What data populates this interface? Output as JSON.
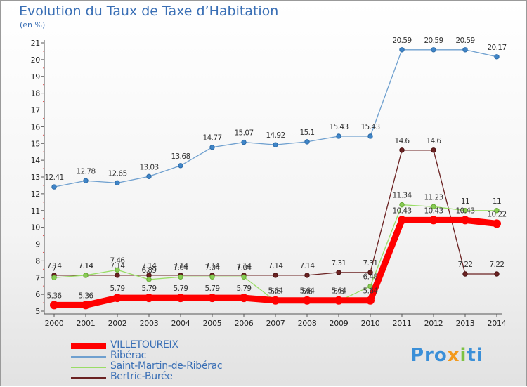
{
  "title": "Evolution du Taux de Taxe d’Habitation",
  "unit": "(en %)",
  "logo": "Proxiti",
  "colors": {
    "title": "#3a6fb5",
    "villetoureix": "#ff0000",
    "riberac": "#6fa0cf",
    "saint_martin": "#99dd66",
    "bertric": "#6b2222"
  },
  "chart_data": {
    "type": "line",
    "title": "Evolution du Taux de Taxe d’Habitation",
    "ylabel": "(en %)",
    "xlabel": "",
    "ylim": [
      5,
      21
    ],
    "grid": false,
    "legend": "bottom-left",
    "x": [
      "2000",
      "2001",
      "2002",
      "2003",
      "2004",
      "2005",
      "2006",
      "2007",
      "2008",
      "2009",
      "2010",
      "2011",
      "2012",
      "2013",
      "2014"
    ],
    "yticks": [
      "5",
      "6",
      "7",
      "8",
      "9",
      "10",
      "11",
      "12",
      "13",
      "14",
      "15",
      "16",
      "17",
      "18",
      "19",
      "20",
      "21"
    ],
    "series": [
      {
        "name": "VILLETOUREIX",
        "color": "#ff0000",
        "values": [
          5.36,
          5.36,
          5.79,
          5.79,
          5.79,
          5.79,
          5.79,
          5.64,
          5.64,
          5.64,
          5.64,
          10.43,
          10.43,
          10.43,
          10.22
        ],
        "labels": [
          "5.36",
          "5.36",
          "5.79",
          "5.79",
          "5.79",
          "5.79",
          "5.79",
          "5.64",
          "5.64",
          "5.64",
          "5.64",
          "10.43",
          "10.43",
          "10.43",
          "10.22"
        ]
      },
      {
        "name": "Ribérac",
        "color": "#6fa0cf",
        "values": [
          12.41,
          12.78,
          12.65,
          13.03,
          13.68,
          14.77,
          15.07,
          14.92,
          15.1,
          15.43,
          15.43,
          20.59,
          20.59,
          20.59,
          20.17
        ],
        "labels": [
          "12.41",
          "12.78",
          "12.65",
          "13.03",
          "13.68",
          "14.77",
          "15.07",
          "14.92",
          "15.1",
          "15.43",
          "15.43",
          "20.59",
          "20.59",
          "20.59",
          "20.17"
        ]
      },
      {
        "name": "Saint-Martin-de-Ribérac",
        "color": "#99dd66",
        "values": [
          7,
          7.14,
          7.46,
          6.89,
          7.04,
          7.04,
          7.04,
          5.6,
          5.6,
          5.6,
          6.48,
          11.34,
          11.23,
          11,
          11
        ],
        "labels": [
          "7",
          "7.14",
          "7.46",
          "6.89",
          "7.04",
          "7.04",
          "7.04",
          "5.6",
          "5.6",
          "5.6",
          "6.48",
          "11.34",
          "11.23",
          "11",
          "11"
        ]
      },
      {
        "name": "Bertric-Burée",
        "color": "#6b2222",
        "values": [
          7.14,
          7.14,
          7.14,
          7.14,
          7.14,
          7.14,
          7.14,
          7.14,
          7.14,
          7.31,
          7.31,
          14.6,
          14.6,
          7.22,
          7.22
        ],
        "labels": [
          "7.14",
          "7.14",
          "7.14",
          "7.14",
          "7.14",
          "7.14",
          "7.14",
          "7.14",
          "7.14",
          "7.31",
          "7.31",
          "14.6",
          "14.6",
          "7.22",
          "7.22"
        ]
      }
    ]
  }
}
